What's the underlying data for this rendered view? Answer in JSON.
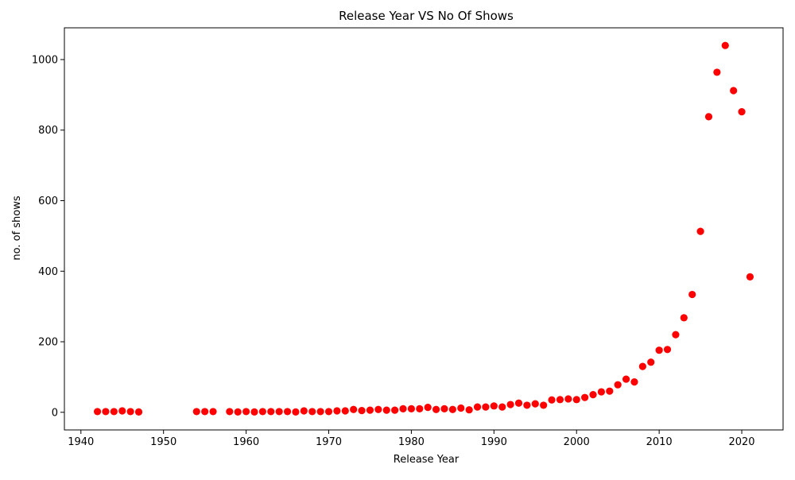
{
  "chart_data": {
    "type": "scatter",
    "title": "Release Year VS No Of Shows",
    "xlabel": "Release Year",
    "ylabel": "no. of shows",
    "xlim": [
      1938,
      2025
    ],
    "ylim": [
      -50,
      1090
    ],
    "xticks": [
      1940,
      1950,
      1960,
      1970,
      1980,
      1990,
      2000,
      2010,
      2020
    ],
    "yticks": [
      0,
      200,
      400,
      600,
      800,
      1000
    ],
    "grid": false,
    "marker_color": "#ff0000",
    "x": [
      1942,
      1943,
      1944,
      1945,
      1946,
      1947,
      1954,
      1955,
      1956,
      1958,
      1959,
      1960,
      1961,
      1962,
      1963,
      1964,
      1965,
      1966,
      1967,
      1968,
      1969,
      1970,
      1971,
      1972,
      1973,
      1974,
      1975,
      1976,
      1977,
      1978,
      1979,
      1980,
      1981,
      1982,
      1983,
      1984,
      1985,
      1986,
      1987,
      1988,
      1989,
      1990,
      1991,
      1992,
      1993,
      1994,
      1995,
      1996,
      1997,
      1998,
      1999,
      2000,
      2001,
      2002,
      2003,
      2004,
      2005,
      2006,
      2007,
      2008,
      2009,
      2010,
      2011,
      2012,
      2013,
      2014,
      2015,
      2016,
      2017,
      2018,
      2019,
      2020,
      2021
    ],
    "y": [
      2,
      2,
      2,
      4,
      2,
      1,
      2,
      2,
      2,
      2,
      1,
      2,
      1,
      2,
      2,
      2,
      2,
      1,
      4,
      2,
      2,
      2,
      4,
      4,
      8,
      5,
      6,
      8,
      6,
      6,
      10,
      10,
      10,
      14,
      8,
      10,
      8,
      12,
      7,
      15,
      15,
      18,
      15,
      22,
      26,
      20,
      24,
      20,
      35,
      36,
      38,
      36,
      42,
      50,
      58,
      60,
      78,
      94,
      86,
      130,
      142,
      176,
      178,
      220,
      268,
      334,
      513,
      838,
      964,
      1040,
      912,
      852,
      384
    ]
  }
}
